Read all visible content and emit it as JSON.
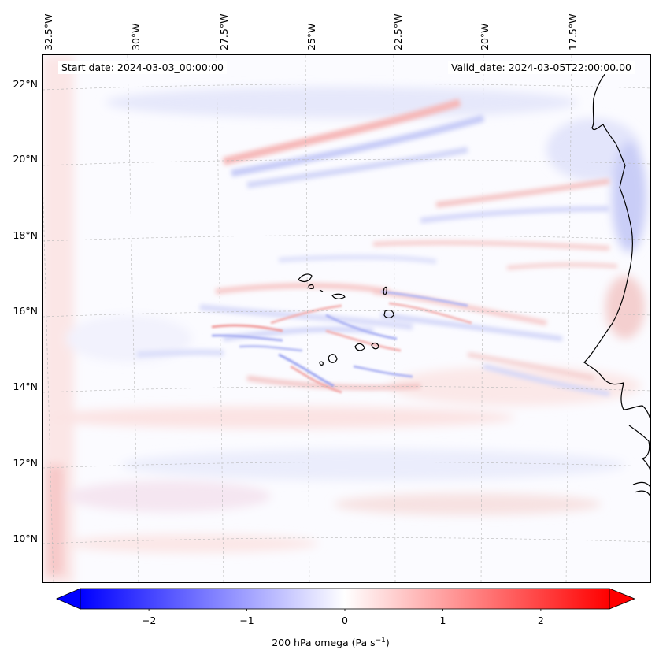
{
  "map": {
    "projection": "Lambert Conformal",
    "region": "Eastern tropical North Atlantic near Cape Verde and West African coast",
    "start_date_label": "Start date: 2024-03-03_00:00:00",
    "valid_date_label": "Valid_date: 2024-03-05T22:00:00.00",
    "lon_labels": [
      "32.5°W",
      "30°W",
      "27.5°W",
      "25°W",
      "22.5°W",
      "20°W",
      "17.5°W"
    ],
    "lat_labels": [
      "22°N",
      "20°N",
      "18°N",
      "16°N",
      "14°N",
      "12°N",
      "10°N"
    ],
    "field": "200 hPa omega",
    "colormap": "bwr",
    "colors": {
      "negative": "#0000ff",
      "zero": "#ffffff",
      "positive": "#ff0000",
      "coastline": "#000000",
      "grid": "#b0b0b0"
    }
  },
  "colorbar": {
    "label_prefix": "200 hPa omega (Pa s",
    "label_exp": "−1",
    "label_suffix": ")",
    "min": -2.7,
    "max": 2.7,
    "extend": "both",
    "ticks": [
      {
        "value": -2,
        "label": "−2"
      },
      {
        "value": -1,
        "label": "−1"
      },
      {
        "value": 0,
        "label": "0"
      },
      {
        "value": 1,
        "label": "1"
      },
      {
        "value": 2,
        "label": "2"
      }
    ]
  }
}
